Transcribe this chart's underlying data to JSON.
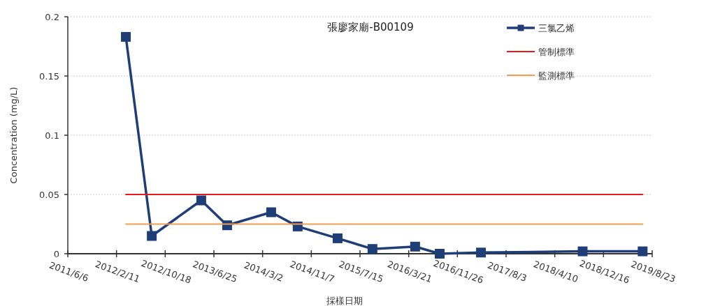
{
  "chart_data": {
    "type": "line",
    "title": "張廖家廟-B00109",
    "xlabel": "採樣日期",
    "ylabel": "Concentration (mg/L)",
    "x": [
      "2012-03-30",
      "2012-08-10",
      "2013-04-21",
      "2013-09-01",
      "2014-04-15",
      "2014-08-29",
      "2015-03-22",
      "2015-09-17",
      "2016-04-23",
      "2016-08-27",
      "2017-03-27",
      "2018-08-31",
      "2019-07-05"
    ],
    "series": [
      {
        "name": "三氯乙烯",
        "color": "#1f3e78",
        "marker": "square",
        "values": [
          0.183,
          0.015,
          0.045,
          0.024,
          0.035,
          0.023,
          0.013,
          0.004,
          0.006,
          0.0,
          0.001,
          0.002,
          0.002
        ]
      },
      {
        "name": "管制標準",
        "color": "#e8191e",
        "marker": "none",
        "x": [
          "2012-03-30",
          "2019-07-05"
        ],
        "values": [
          0.05,
          0.05
        ]
      },
      {
        "name": "監測標準",
        "color": "#f0a050",
        "marker": "none",
        "x": [
          "2012-03-30",
          "2019-07-05"
        ],
        "values": [
          0.025,
          0.025
        ]
      }
    ],
    "xlim": [
      "2011-06-06",
      "2019-08-23"
    ],
    "xticks": [
      {
        "value": "2011-06-06",
        "label": "2011/6/6"
      },
      {
        "value": "2012-02-11",
        "label": "2012/2/11"
      },
      {
        "value": "2012-10-18",
        "label": "2012/10/18"
      },
      {
        "value": "2013-06-25",
        "label": "2013/6/25"
      },
      {
        "value": "2014-03-02",
        "label": "2014/3/2"
      },
      {
        "value": "2014-11-07",
        "label": "2014/11/7"
      },
      {
        "value": "2015-07-15",
        "label": "2015/7/15"
      },
      {
        "value": "2016-03-21",
        "label": "2016/3/21"
      },
      {
        "value": "2016-11-26",
        "label": "2016/11/26"
      },
      {
        "value": "2017-08-03",
        "label": "2017/8/3"
      },
      {
        "value": "2018-04-10",
        "label": "2018/4/10"
      },
      {
        "value": "2018-12-16",
        "label": "2018/12/16"
      },
      {
        "value": "2019-08-23",
        "label": "2019/8/23"
      }
    ],
    "ylim": [
      0,
      0.2
    ],
    "yticks": [
      0,
      0.05,
      0.1,
      0.15,
      0.2
    ],
    "grid": "y",
    "legend": "top right",
    "line_style": "solid"
  }
}
